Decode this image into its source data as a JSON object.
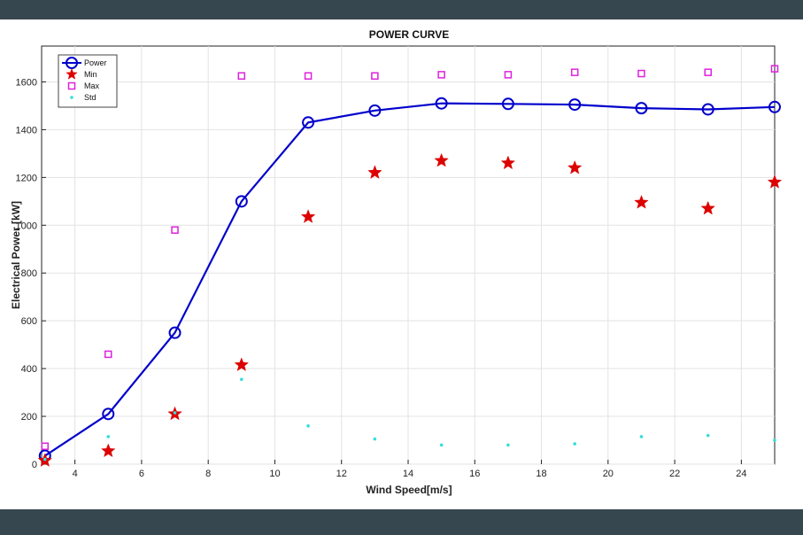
{
  "chart_data": {
    "type": "line",
    "title": "POWER CURVE",
    "xlabel": "Wind Speed[m/s]",
    "ylabel": "Electrical Power [kW]",
    "xlim": [
      3,
      25
    ],
    "ylim": [
      0,
      1750
    ],
    "x_ticks": [
      4,
      6,
      8,
      10,
      12,
      14,
      16,
      18,
      20,
      22,
      24
    ],
    "y_ticks": [
      0,
      200,
      400,
      600,
      800,
      1000,
      1200,
      1400,
      1600
    ],
    "grid": true,
    "legend_position": "top-left",
    "series": [
      {
        "name": "Power",
        "style": "line-circle",
        "color": "#0000cc",
        "x": [
          3.1,
          5,
          7,
          9,
          11,
          13,
          15,
          17,
          19,
          21,
          23,
          25
        ],
        "y": [
          35,
          210,
          550,
          1100,
          1430,
          1480,
          1510,
          1508,
          1505,
          1490,
          1485,
          1495
        ]
      },
      {
        "name": "Min",
        "style": "star",
        "color": "#dd0000",
        "x": [
          3.1,
          5,
          7,
          9,
          11,
          13,
          15,
          17,
          19,
          21,
          23,
          25
        ],
        "y": [
          15,
          55,
          210,
          415,
          1035,
          1220,
          1270,
          1260,
          1240,
          1095,
          1070,
          1180
        ]
      },
      {
        "name": "Max",
        "style": "square",
        "color": "#dd22dd",
        "x": [
          3.1,
          5,
          7,
          9,
          11,
          13,
          15,
          17,
          19,
          21,
          23,
          25
        ],
        "y": [
          75,
          460,
          980,
          1625,
          1625,
          1625,
          1630,
          1630,
          1640,
          1635,
          1640,
          1655
        ]
      },
      {
        "name": "Std",
        "style": "dot",
        "color": "#33dddd",
        "x": [
          3.1,
          5,
          7,
          9,
          11,
          13,
          15,
          17,
          19,
          21,
          23,
          25
        ],
        "y": [
          20,
          115,
          215,
          355,
          160,
          105,
          80,
          80,
          85,
          115,
          120,
          100
        ]
      }
    ]
  }
}
